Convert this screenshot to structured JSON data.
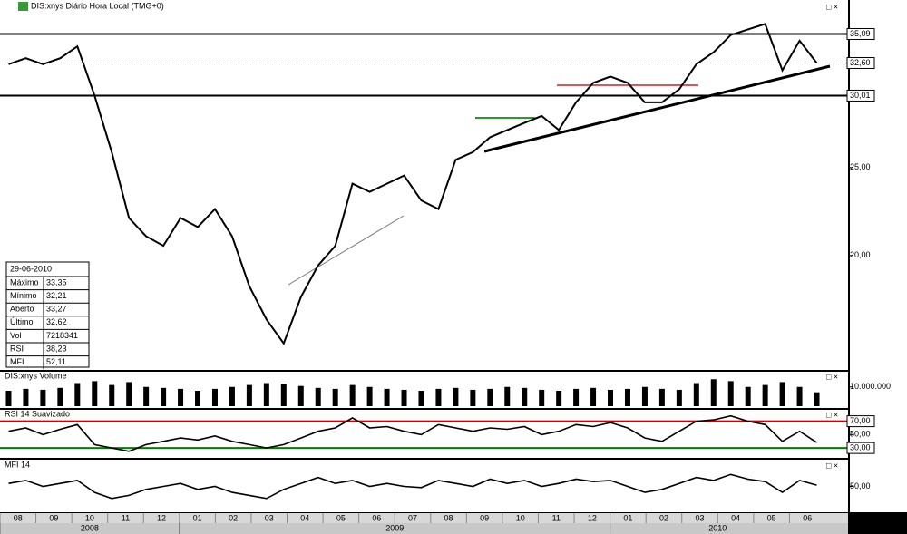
{
  "chart_data": [
    {
      "type": "line",
      "title": "DIS:xnys Diário Hora Local (TMG+0)",
      "log_scale": true,
      "color": "#000000",
      "ylim": [
        15.1,
        37.9
      ],
      "yticks": [
        {
          "value": 20,
          "label": "20,00"
        },
        {
          "value": 25,
          "label": "25,00"
        },
        {
          "value": 30.01,
          "label": "30,01",
          "line": "solid"
        },
        {
          "value": 32.6,
          "label": "32,60",
          "line": "dotted"
        },
        {
          "value": 35.09,
          "label": "35,09",
          "line": "solid"
        }
      ],
      "values": [
        32.5,
        33,
        32.5,
        33,
        34,
        30,
        26,
        22,
        21,
        20.5,
        22,
        21.5,
        22.5,
        21,
        18.5,
        17,
        16,
        18,
        19.5,
        20.5,
        24,
        23.5,
        24,
        24.5,
        23,
        22.5,
        25.5,
        26,
        27,
        27.5,
        28,
        28.5,
        27.5,
        29.5,
        31,
        31.5,
        31,
        29.5,
        29.5,
        30.5,
        32.5,
        33.5,
        35,
        35.5,
        36,
        32,
        34.5,
        32.6
      ]
    },
    {
      "type": "bar",
      "title": "DIS:xnys Volume",
      "color": "#000000",
      "ylim": [
        0,
        16000000
      ],
      "yticks": [
        {
          "value": 10000000,
          "label": "10.000.000"
        }
      ],
      "values": [
        8000000,
        9000000,
        8500000,
        9500000,
        12000000,
        13000000,
        11000000,
        12500000,
        10000000,
        9500000,
        9000000,
        8000000,
        9000000,
        10000000,
        11000000,
        12000000,
        11500000,
        10500000,
        9500000,
        9000000,
        11000000,
        10000000,
        9000000,
        8500000,
        8000000,
        9000000,
        9500000,
        8500000,
        9000000,
        10000000,
        9500000,
        8500000,
        8000000,
        9000000,
        9500000,
        8500000,
        9000000,
        10000000,
        9000000,
        8500000,
        12000000,
        14000000,
        13000000,
        10000000,
        11000000,
        12500000,
        10000000,
        7218341
      ]
    },
    {
      "type": "line",
      "title": "RSI 14 Suavizado",
      "color": "#000000",
      "ylim": [
        18,
        83
      ],
      "yticks": [
        {
          "value": 70,
          "label": "70,00",
          "line": "#d00000"
        },
        {
          "value": 50,
          "label": "50,00"
        },
        {
          "value": 30,
          "label": "30,00",
          "line": "#008000"
        }
      ],
      "values": [
        55,
        60,
        50,
        58,
        65,
        35,
        30,
        25,
        35,
        40,
        45,
        42,
        48,
        40,
        35,
        30,
        35,
        45,
        55,
        60,
        75,
        60,
        62,
        55,
        50,
        65,
        60,
        55,
        60,
        58,
        62,
        50,
        55,
        65,
        62,
        68,
        60,
        45,
        40,
        55,
        70,
        72,
        78,
        70,
        65,
        40,
        55,
        38.23
      ]
    },
    {
      "type": "line",
      "title": "MFI 14",
      "color": "#000000",
      "ylim": [
        10,
        90
      ],
      "yticks": [
        {
          "value": 50,
          "label": "50,00"
        }
      ],
      "values": [
        55,
        60,
        50,
        55,
        60,
        40,
        30,
        35,
        45,
        50,
        55,
        45,
        50,
        40,
        35,
        30,
        45,
        55,
        65,
        55,
        60,
        50,
        55,
        50,
        48,
        60,
        55,
        50,
        62,
        55,
        60,
        50,
        55,
        62,
        58,
        60,
        50,
        40,
        45,
        55,
        65,
        60,
        70,
        62,
        58,
        40,
        60,
        52.11
      ]
    }
  ],
  "x_axis": {
    "months": [
      "08",
      "09",
      "10",
      "11",
      "12",
      "01",
      "02",
      "03",
      "04",
      "05",
      "06",
      "07",
      "08",
      "09",
      "10",
      "11",
      "12",
      "01",
      "02",
      "03",
      "04",
      "05",
      "06"
    ],
    "years": [
      "2008",
      "2009",
      "2010"
    ]
  },
  "info_box": {
    "date": "29-06-2010",
    "rows": [
      [
        "Máximo",
        "33,35"
      ],
      [
        "Mínimo",
        "32,21"
      ],
      [
        "Aberto",
        "33,27"
      ],
      [
        "Último",
        "32,62"
      ],
      [
        "Vol",
        "7218341"
      ],
      [
        "RSI",
        "38,23"
      ],
      [
        "MFI",
        "52,11"
      ]
    ]
  }
}
